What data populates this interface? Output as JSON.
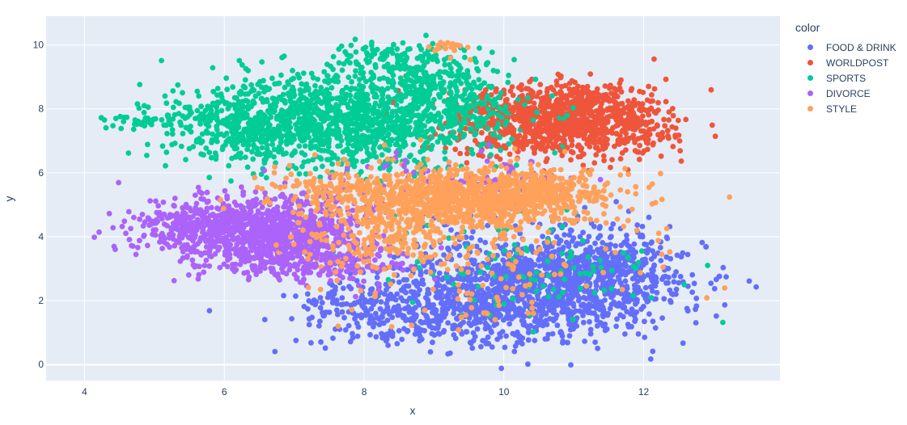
{
  "chart_data": {
    "type": "scatter",
    "xlabel": "x",
    "ylabel": "y",
    "xlim": [
      3.45,
      13.95
    ],
    "ylim": [
      -0.5,
      10.9
    ],
    "xticks": [
      4,
      6,
      8,
      10,
      12
    ],
    "yticks": [
      0,
      2,
      4,
      6,
      8,
      10
    ],
    "grid": true,
    "legend": {
      "title": "color",
      "placement": "right"
    },
    "series": [
      {
        "name": "FOOD & DRINK",
        "color": "#636efa",
        "clusters": [
          {
            "cx": 10.4,
            "cy": 2.5,
            "sx": 1.0,
            "sy": 0.8,
            "n": 1300
          },
          {
            "cx": 9.0,
            "cy": 1.5,
            "sx": 0.9,
            "sy": 0.5,
            "n": 300
          },
          {
            "cx": 11.5,
            "cy": 3.0,
            "sx": 0.5,
            "sy": 0.6,
            "n": 250
          },
          {
            "cx": 7.8,
            "cy": 1.9,
            "sx": 0.4,
            "sy": 0.3,
            "n": 80
          }
        ]
      },
      {
        "name": "WORLDPOST",
        "color": "#ef553b",
        "clusters": [
          {
            "cx": 10.6,
            "cy": 7.6,
            "sx": 0.75,
            "sy": 0.55,
            "n": 900
          },
          {
            "cx": 11.4,
            "cy": 8.0,
            "sx": 0.45,
            "sy": 0.5,
            "n": 200
          },
          {
            "cx": 12.1,
            "cy": 7.0,
            "sx": 0.3,
            "sy": 0.3,
            "n": 40
          }
        ]
      },
      {
        "name": "SPORTS",
        "color": "#00cc96",
        "clusters": [
          {
            "cx": 7.6,
            "cy": 7.6,
            "sx": 1.1,
            "sy": 0.7,
            "n": 1300
          },
          {
            "cx": 9.0,
            "cy": 8.7,
            "sx": 0.6,
            "sy": 0.6,
            "n": 300
          },
          {
            "cx": 6.3,
            "cy": 7.4,
            "sx": 0.55,
            "sy": 0.5,
            "n": 200
          },
          {
            "cx": 8.3,
            "cy": 9.7,
            "sx": 0.5,
            "sy": 0.25,
            "n": 80
          },
          {
            "cx": 10.3,
            "cy": 3.0,
            "sx": 1.0,
            "sy": 0.8,
            "n": 100
          },
          {
            "cx": 4.9,
            "cy": 7.6,
            "sx": 0.3,
            "sy": 0.12,
            "n": 30
          }
        ]
      },
      {
        "name": "DIVORCE",
        "color": "#ab63fa",
        "clusters": [
          {
            "cx": 6.6,
            "cy": 4.2,
            "sx": 0.75,
            "sy": 0.55,
            "n": 1000
          },
          {
            "cx": 7.2,
            "cy": 3.2,
            "sx": 0.7,
            "sy": 0.35,
            "n": 250
          },
          {
            "cx": 5.4,
            "cy": 4.3,
            "sx": 0.4,
            "sy": 0.35,
            "n": 100
          },
          {
            "cx": 9.4,
            "cy": 5.8,
            "sx": 0.8,
            "sy": 0.4,
            "n": 80
          }
        ]
      },
      {
        "name": "STYLE",
        "color": "#ffa15a",
        "clusters": [
          {
            "cx": 9.5,
            "cy": 5.2,
            "sx": 0.95,
            "sy": 0.45,
            "n": 1100
          },
          {
            "cx": 8.2,
            "cy": 4.2,
            "sx": 0.6,
            "sy": 0.7,
            "n": 250
          },
          {
            "cx": 10.6,
            "cy": 5.5,
            "sx": 0.5,
            "sy": 0.3,
            "n": 150
          },
          {
            "cx": 7.5,
            "cy": 5.6,
            "sx": 0.5,
            "sy": 0.4,
            "n": 100
          },
          {
            "cx": 10.0,
            "cy": 2.8,
            "sx": 1.0,
            "sy": 0.9,
            "n": 100
          },
          {
            "cx": 9.2,
            "cy": 9.9,
            "sx": 0.2,
            "sy": 0.12,
            "n": 20
          }
        ]
      }
    ]
  }
}
